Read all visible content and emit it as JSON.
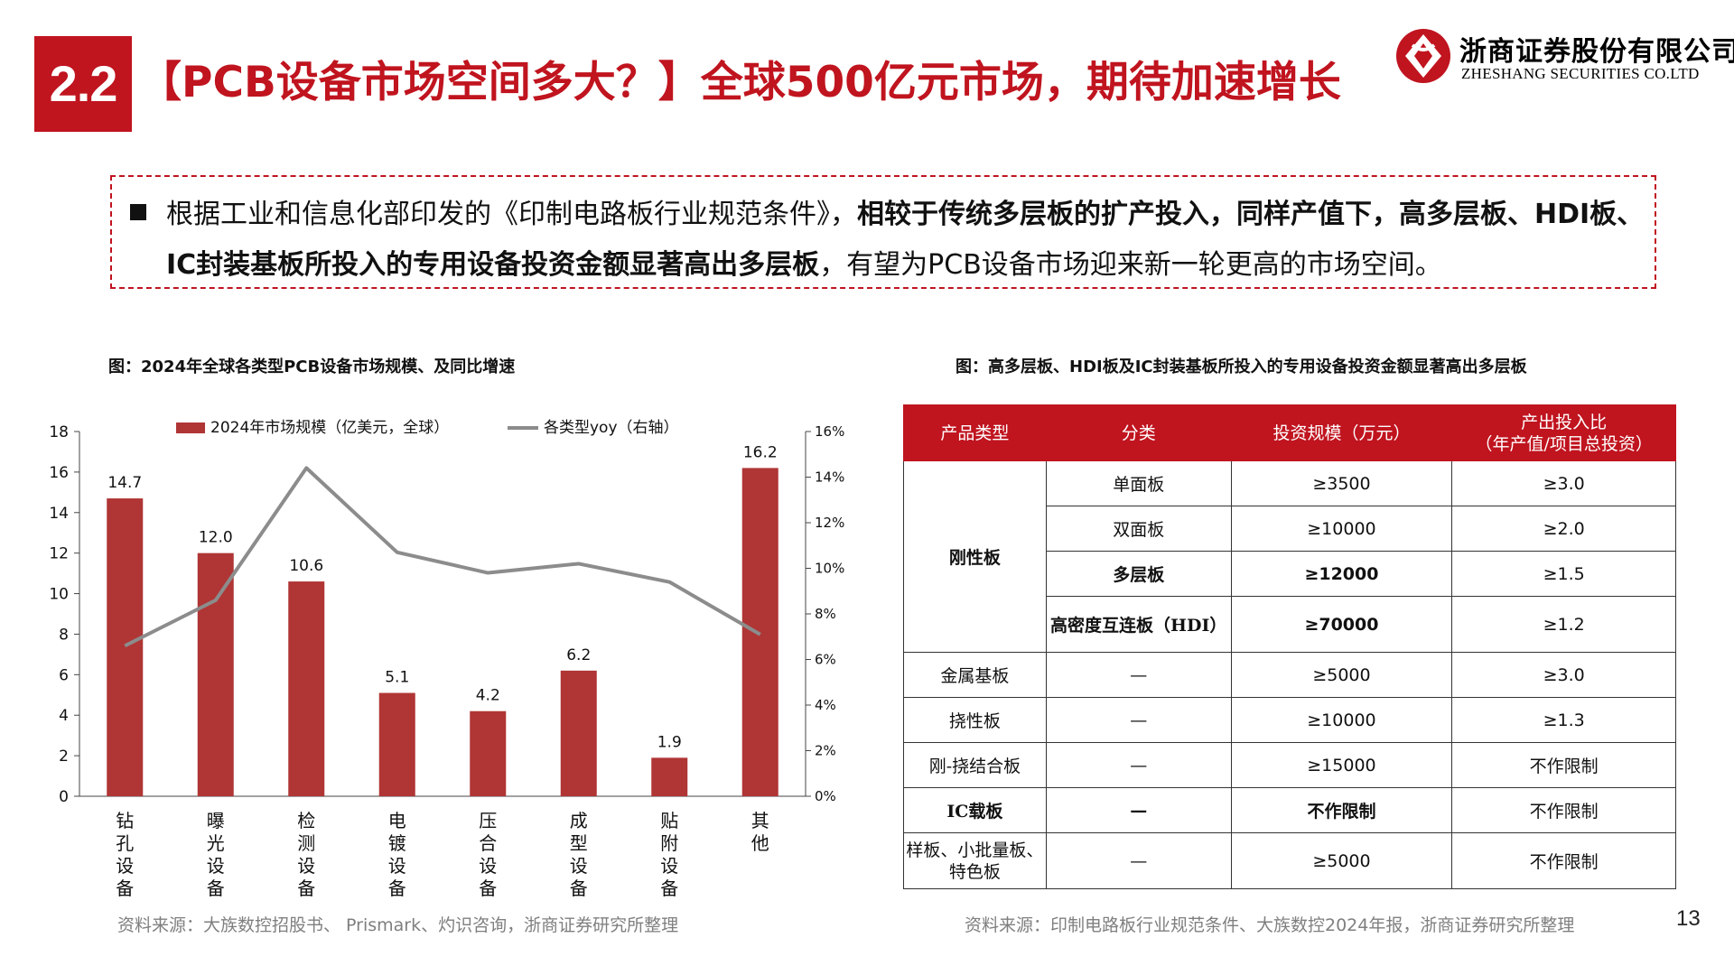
{
  "header": {
    "section_number": "2.2",
    "title": "【PCB设备市场空间多大？】全球500亿元市场，期待加速增长",
    "logo_cn": "浙商证券股份有限公司",
    "logo_en": "ZHESHANG SECURITIES CO.LTD",
    "brand_color": "#c0141f"
  },
  "callout": {
    "normal_1": "根据工业和信息化部印发的《印制电路板行业规范条件》，",
    "bold": "相较于传统多层板的扩产投入，同样产值下，高多层板、HDI板、IC封装基板所投入的专用设备投资金额显著高出多层板",
    "normal_2": "，有望为PCB设备市场迎来新一轮更高的市场空间。"
  },
  "left_figure": {
    "title": "图：2024年全球各类型PCB设备市场规模、及同比增速",
    "source": "资料来源：大族数控招股书、 Prismark、灼识咨询，浙商证券研究所整理"
  },
  "right_figure": {
    "title": "图：高多层板、HDI板及IC封装基板所投入的专用设备投资金额显著高出多层板",
    "source": "资料来源：印制电路板行业规范条件、大族数控2024年报，浙商证券研究所整理"
  },
  "chart_data": {
    "type": "bar",
    "categories": [
      "钻孔设备",
      "曝光设备",
      "检测设备",
      "电镀设备",
      "压合设备",
      "成型设备",
      "贴附设备",
      "其他"
    ],
    "series": [
      {
        "name": "2024年市场规模（亿美元，全球）",
        "type": "bar",
        "axis": "left",
        "color": "#b03535",
        "values": [
          14.7,
          12.0,
          10.6,
          5.1,
          4.2,
          6.2,
          1.9,
          16.2
        ],
        "data_labels": [
          "14.7",
          "12.0",
          "10.6",
          "5.1",
          "4.2",
          "6.2",
          "1.9",
          "16.2"
        ]
      },
      {
        "name": "各类型yoy（右轴）",
        "type": "line",
        "axis": "right",
        "color": "#8c8c8c",
        "values": [
          0.066,
          0.086,
          0.144,
          0.107,
          0.098,
          0.102,
          0.094,
          0.071
        ]
      }
    ],
    "ylim": [
      0,
      18
    ],
    "y_ticks": [
      "0",
      "2",
      "4",
      "6",
      "8",
      "10",
      "12",
      "14",
      "16",
      "18"
    ],
    "y2lim": [
      0,
      0.16
    ],
    "y2_ticks": [
      "0%",
      "2%",
      "4%",
      "6%",
      "8%",
      "10%",
      "12%",
      "14%",
      "16%"
    ],
    "legend_position": "top",
    "grid": false
  },
  "table": {
    "headers": [
      "产品类型",
      "分类",
      "投资规模（万元）",
      "产出投入比（年产值/项目总投资）"
    ],
    "header_ratio_line1": "产出投入比",
    "header_ratio_line2": "（年产值/项目总投资）",
    "rigid_label": "刚性板",
    "rigid_rows": [
      {
        "category": "单面板",
        "investment": "≥3500",
        "ratio": "≥3.0",
        "bold": false
      },
      {
        "category": "双面板",
        "investment": "≥10000",
        "ratio": "≥2.0",
        "bold": false
      },
      {
        "category": "多层板",
        "investment": "≥12000",
        "ratio": "≥1.5",
        "bold": true
      },
      {
        "category": "高密度互连板（HDI）",
        "investment": "≥70000",
        "ratio": "≥1.2",
        "bold": true
      }
    ],
    "other_rows": [
      {
        "type": "金属基板",
        "category": "—",
        "investment": "≥5000",
        "ratio": "≥3.0",
        "bold": false
      },
      {
        "type": "挠性板",
        "category": "—",
        "investment": "≥10000",
        "ratio": "≥1.3",
        "bold": false
      },
      {
        "type": "刚-挠结合板",
        "category": "—",
        "investment": "≥15000",
        "ratio": "不作限制",
        "bold": false
      },
      {
        "type": "IC载板",
        "category": "—",
        "investment": "不作限制",
        "ratio": "不作限制",
        "bold": true
      }
    ],
    "last_row": {
      "type_line1": "样板、小批量板、",
      "type_line2": "特色板",
      "category": "—",
      "investment": "≥5000",
      "ratio": "不作限制"
    }
  },
  "page_number": "13"
}
